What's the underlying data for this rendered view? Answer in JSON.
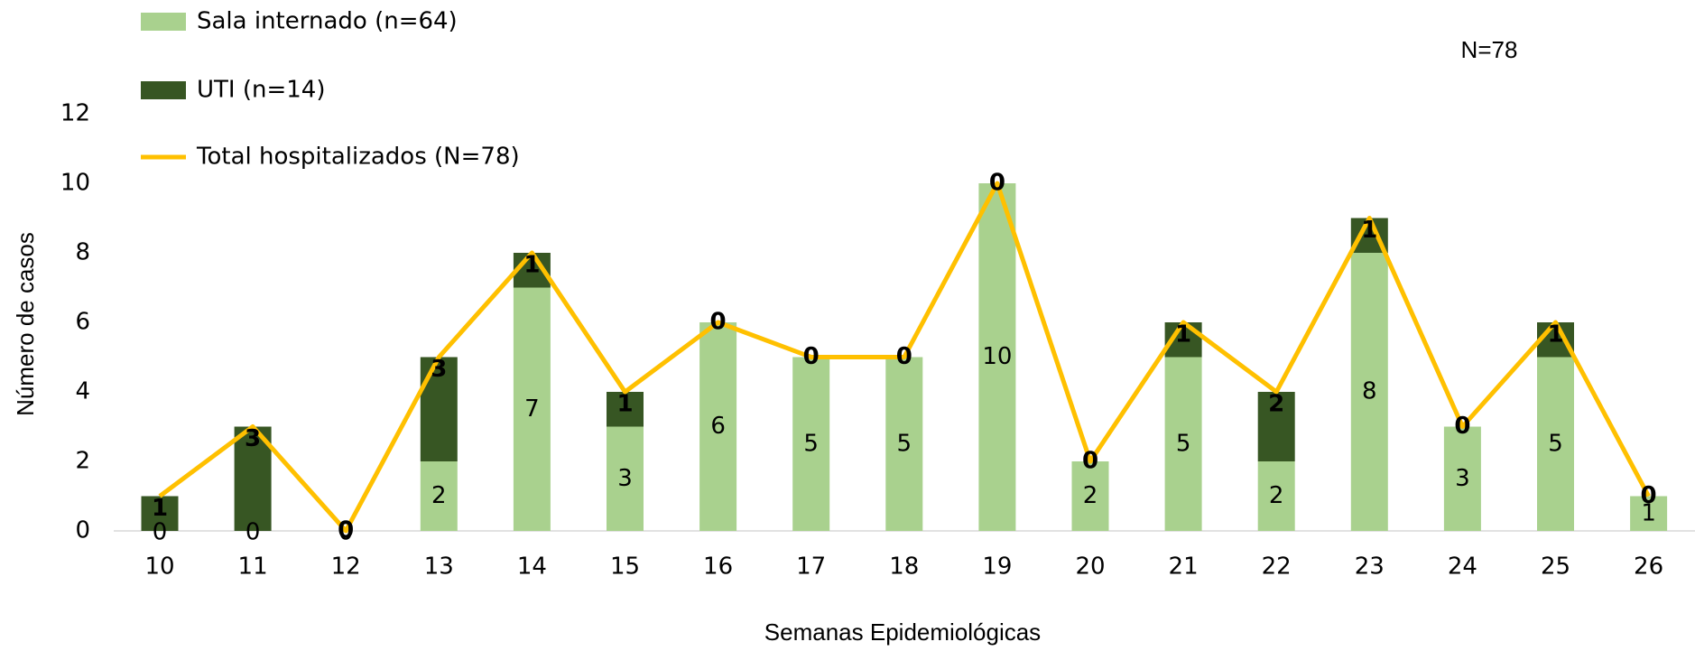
{
  "chart_data": {
    "type": "bar",
    "stacked": true,
    "note": "N=78",
    "x_label": "Semanas Epidemiológicas",
    "y_label": "Número de casos",
    "categories": [
      "10",
      "11",
      "12",
      "13",
      "14",
      "15",
      "16",
      "17",
      "18",
      "19",
      "20",
      "21",
      "22",
      "23",
      "24",
      "25",
      "26"
    ],
    "series": [
      {
        "name": "Sala internado (n=64)",
        "color": "#a9d18e",
        "label_color": "#000000",
        "values": [
          0,
          0,
          0,
          2,
          7,
          3,
          6,
          5,
          5,
          10,
          2,
          5,
          2,
          8,
          3,
          5,
          1
        ]
      },
      {
        "name": "UTI (n=14)",
        "color": "#375623",
        "label_color": "#8497b0",
        "values": [
          1,
          3,
          0,
          3,
          1,
          1,
          0,
          0,
          0,
          0,
          0,
          1,
          2,
          1,
          0,
          1,
          0
        ]
      },
      {
        "name": "Total hospitalizados (N=78)",
        "type": "line",
        "color": "#ffc000",
        "values": [
          1,
          3,
          0,
          5,
          8,
          4,
          6,
          5,
          5,
          10,
          2,
          6,
          4,
          9,
          3,
          6,
          1
        ]
      }
    ],
    "ylim": [
      0,
      12
    ],
    "yticks": [
      0,
      2,
      4,
      6,
      8,
      10,
      12
    ],
    "legend": "top-left",
    "grid": false
  }
}
